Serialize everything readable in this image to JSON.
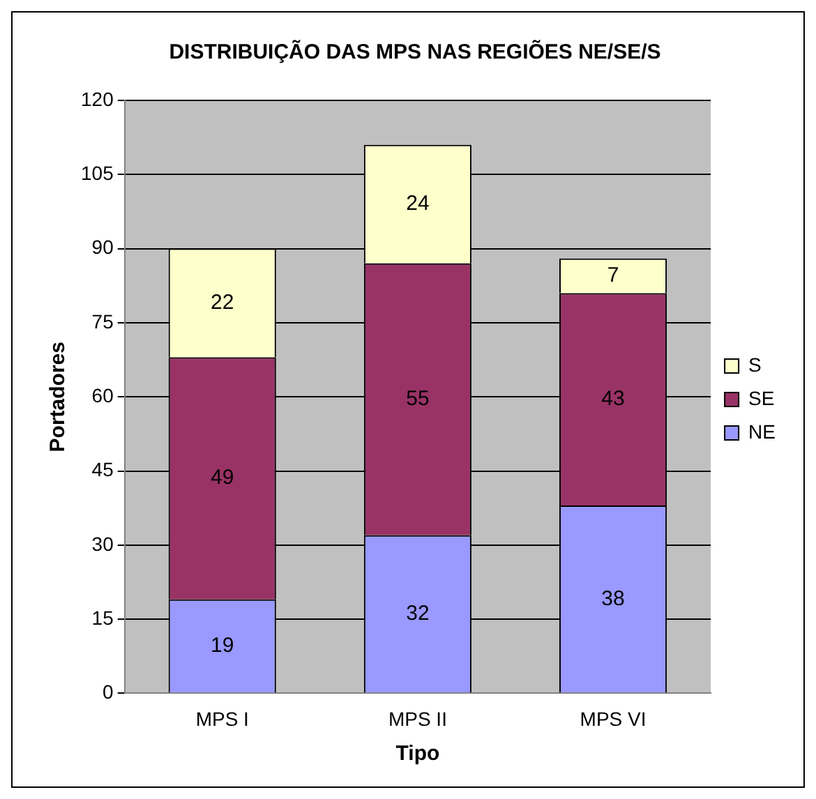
{
  "chart_data": {
    "type": "bar",
    "title": "DISTRIBUIÇÃO DAS MPS NAS REGIÕES NE/SE/S",
    "xlabel": "Tipo",
    "ylabel": "Portadores",
    "categories": [
      "MPS I",
      "MPS II",
      "MPS VI"
    ],
    "series": [
      {
        "name": "NE",
        "color": "#9999ff",
        "values": [
          19,
          32,
          38
        ]
      },
      {
        "name": "SE",
        "color": "#993366",
        "values": [
          49,
          55,
          43
        ]
      },
      {
        "name": "S",
        "color": "#ffffcc",
        "values": [
          22,
          24,
          7
        ]
      }
    ],
    "stacked": true,
    "ylim": [
      0,
      120
    ],
    "yticks": [
      0,
      15,
      30,
      45,
      60,
      75,
      90,
      105,
      120
    ],
    "grid": "y",
    "legend": "right",
    "data_labels": true
  }
}
